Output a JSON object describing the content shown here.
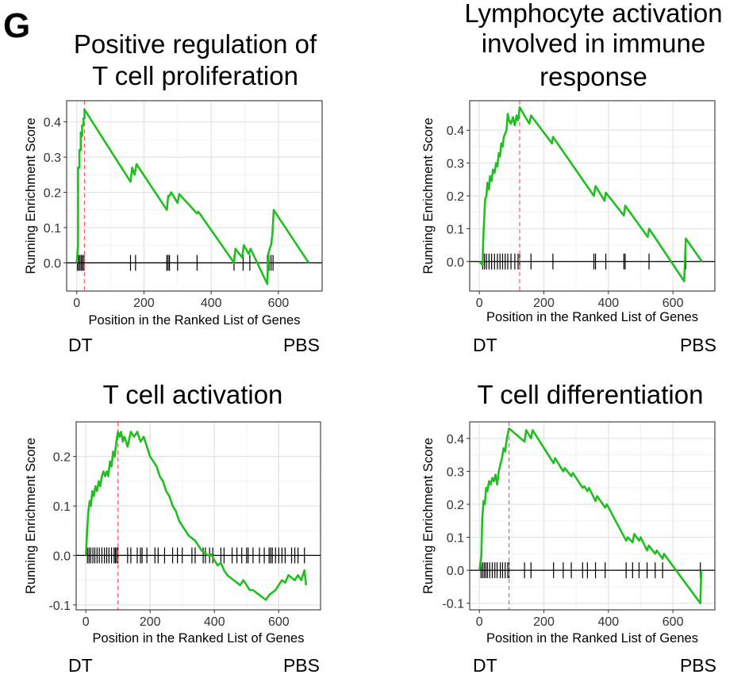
{
  "panel_label": "G",
  "chart_data": [
    {
      "type": "line",
      "title": [
        "Positive regulation of",
        "T cell proliferation"
      ],
      "xlabel": "Position in the Ranked List of Genes",
      "ylabel": "Running Enrichment Score",
      "left_label": "DT",
      "right_label": "PBS",
      "xlim": [
        -30,
        730
      ],
      "ylim": [
        -0.08,
        0.46
      ],
      "xticks": [
        0,
        200,
        400,
        600
      ],
      "yticks": [
        0.0,
        0.1,
        0.2,
        0.3,
        0.4
      ],
      "ytick_labels": [
        "0.0",
        "0.1",
        "0.2",
        "0.3",
        "0.4"
      ],
      "peak_x": 23,
      "line_color": "#1fbf1f",
      "peak_color": "#ff5555",
      "grid": true,
      "series": [
        {
          "name": "Running Enrichment Score",
          "x": [
            0,
            4,
            4,
            8,
            8,
            12,
            12,
            16,
            16,
            20,
            20,
            23,
            23,
            160,
            165,
            172,
            178,
            268,
            272,
            276,
            281,
            300,
            305,
            358,
            362,
            468,
            472,
            492,
            497,
            512,
            517,
            567,
            570,
            574,
            578,
            582,
            586,
            690
          ],
          "y": [
            0.0,
            0.05,
            0.27,
            0.27,
            0.32,
            0.32,
            0.37,
            0.36,
            0.39,
            0.39,
            0.41,
            0.41,
            0.435,
            0.23,
            0.27,
            0.25,
            0.28,
            0.15,
            0.19,
            0.19,
            0.2,
            0.17,
            0.195,
            0.14,
            0.145,
            0.0,
            0.04,
            0.015,
            0.05,
            0.025,
            0.04,
            -0.06,
            0.025,
            0.04,
            0.05,
            0.08,
            0.15,
            0.0
          ]
        }
      ],
      "hit_positions": [
        2,
        6,
        10,
        14,
        18,
        22,
        160,
        175,
        268,
        272,
        276,
        300,
        358,
        468,
        495,
        515,
        567,
        572,
        578,
        584
      ]
    },
    {
      "type": "line",
      "title": [
        "Lymphocyte activation",
        "involved in immune",
        "response"
      ],
      "xlabel": "Position in the Ranked List of Genes",
      "ylabel": "Running Enrichment Score",
      "left_label": "DT",
      "right_label": "PBS",
      "xlim": [
        -30,
        730
      ],
      "ylim": [
        -0.09,
        0.49
      ],
      "xticks": [
        0,
        200,
        400,
        600
      ],
      "yticks": [
        0.0,
        0.1,
        0.2,
        0.3,
        0.4
      ],
      "ytick_labels": [
        "0.0",
        "0.1",
        "0.2",
        "0.3",
        "0.4"
      ],
      "peak_x": 125,
      "line_color": "#1fbf1f",
      "peak_color": "#ff5555",
      "grid": true,
      "series": [
        {
          "name": "Running Enrichment Score",
          "x": [
            0,
            10,
            12,
            16,
            18,
            22,
            25,
            30,
            33,
            38,
            42,
            47,
            52,
            56,
            60,
            64,
            68,
            72,
            76,
            80,
            84,
            88,
            92,
            98,
            104,
            110,
            115,
            120,
            125,
            155,
            160,
            225,
            228,
            355,
            360,
            388,
            392,
            448,
            452,
            522,
            526,
            635,
            640,
            690
          ],
          "y": [
            0.0,
            -0.01,
            0.07,
            0.15,
            0.19,
            0.2,
            0.24,
            0.22,
            0.26,
            0.245,
            0.28,
            0.27,
            0.3,
            0.29,
            0.33,
            0.32,
            0.36,
            0.35,
            0.38,
            0.39,
            0.4,
            0.45,
            0.43,
            0.42,
            0.44,
            0.415,
            0.445,
            0.43,
            0.47,
            0.42,
            0.445,
            0.36,
            0.38,
            0.2,
            0.23,
            0.185,
            0.21,
            0.14,
            0.17,
            0.075,
            0.1,
            -0.06,
            0.07,
            0.0
          ]
        }
      ],
      "hit_positions": [
        10,
        16,
        22,
        30,
        38,
        47,
        56,
        64,
        72,
        80,
        88,
        98,
        110,
        120,
        125,
        160,
        228,
        355,
        360,
        392,
        448,
        452,
        526,
        640
      ]
    },
    {
      "type": "line",
      "title": [
        "T cell activation"
      ],
      "xlabel": "Position in the Ranked List of Genes",
      "ylabel": "Running Enrichment Score",
      "left_label": "DT",
      "right_label": "PBS",
      "xlim": [
        -30,
        730
      ],
      "ylim": [
        -0.11,
        0.27
      ],
      "xticks": [
        0,
        200,
        400,
        600
      ],
      "yticks": [
        -0.1,
        0.0,
        0.1,
        0.2
      ],
      "ytick_labels": [
        "-0.1",
        "0.0",
        "0.1",
        "0.2"
      ],
      "peak_x": 100,
      "line_color": "#1fbf1f",
      "peak_color": "#ff5555",
      "grid": true,
      "series": [
        {
          "name": "Running Enrichment Score",
          "x": [
            0,
            5,
            8,
            12,
            16,
            20,
            25,
            30,
            35,
            40,
            45,
            50,
            55,
            60,
            65,
            70,
            75,
            80,
            85,
            90,
            95,
            100,
            105,
            110,
            115,
            120,
            130,
            140,
            150,
            160,
            170,
            180,
            190,
            200,
            210,
            220,
            230,
            240,
            250,
            260,
            270,
            280,
            290,
            300,
            310,
            320,
            330,
            340,
            350,
            360,
            370,
            380,
            390,
            400,
            410,
            420,
            430,
            440,
            450,
            460,
            470,
            480,
            490,
            500,
            510,
            520,
            530,
            540,
            550,
            560,
            570,
            580,
            590,
            600,
            610,
            620,
            630,
            640,
            650,
            660,
            670,
            680,
            685
          ],
          "y": [
            0.0,
            0.06,
            0.09,
            0.11,
            0.1,
            0.13,
            0.12,
            0.14,
            0.13,
            0.15,
            0.14,
            0.16,
            0.17,
            0.16,
            0.17,
            0.16,
            0.19,
            0.18,
            0.21,
            0.2,
            0.23,
            0.25,
            0.24,
            0.25,
            0.23,
            0.24,
            0.22,
            0.25,
            0.24,
            0.25,
            0.23,
            0.24,
            0.22,
            0.2,
            0.19,
            0.18,
            0.16,
            0.15,
            0.13,
            0.12,
            0.1,
            0.09,
            0.07,
            0.06,
            0.05,
            0.04,
            0.035,
            0.03,
            0.02,
            0.01,
            0.005,
            0.0,
            0.002,
            -0.01,
            -0.02,
            -0.015,
            -0.03,
            -0.04,
            -0.045,
            -0.05,
            -0.055,
            -0.06,
            -0.05,
            -0.06,
            -0.07,
            -0.07,
            -0.075,
            -0.08,
            -0.085,
            -0.09,
            -0.08,
            -0.075,
            -0.07,
            -0.06,
            -0.05,
            -0.055,
            -0.04,
            -0.045,
            -0.05,
            -0.04,
            -0.05,
            -0.03,
            -0.06
          ]
        }
      ],
      "hit_positions": [
        5,
        10,
        15,
        22,
        28,
        35,
        42,
        50,
        58,
        65,
        72,
        80,
        88,
        92,
        96,
        100,
        130,
        140,
        160,
        170,
        175,
        190,
        215,
        225,
        245,
        270,
        285,
        300,
        330,
        340,
        365,
        372,
        385,
        395,
        420,
        430,
        455,
        470,
        485,
        500,
        505,
        520,
        540,
        555,
        570,
        575,
        580,
        590,
        600,
        610,
        620,
        640,
        650,
        660,
        680
      ]
    },
    {
      "type": "line",
      "title": [
        "T cell differentiation"
      ],
      "xlabel": "Position in the Ranked List of Genes",
      "ylabel": "Running Enrichment Score",
      "left_label": "DT",
      "right_label": "PBS",
      "xlim": [
        -30,
        730
      ],
      "ylim": [
        -0.12,
        0.45
      ],
      "xticks": [
        0,
        200,
        400,
        600
      ],
      "yticks": [
        -0.1,
        0.0,
        0.1,
        0.2,
        0.3,
        0.4
      ],
      "ytick_labels": [
        "-0.1",
        "0.0",
        "0.1",
        "0.2",
        "0.3",
        "0.4"
      ],
      "peak_x": 92,
      "line_color": "#1fbf1f",
      "peak_color": "#ff5555",
      "grid": true,
      "series": [
        {
          "name": "Running Enrichment Score",
          "x": [
            0,
            6,
            9,
            13,
            17,
            21,
            25,
            30,
            35,
            40,
            45,
            50,
            55,
            60,
            65,
            70,
            75,
            80,
            85,
            92,
            140,
            145,
            160,
            165,
            230,
            235,
            260,
            265,
            285,
            290,
            320,
            325,
            335,
            340,
            360,
            365,
            390,
            395,
            455,
            460,
            475,
            480,
            495,
            500,
            520,
            525,
            545,
            550,
            568,
            572,
            685,
            688
          ],
          "y": [
            0.0,
            0.04,
            0.16,
            0.21,
            0.2,
            0.25,
            0.24,
            0.27,
            0.26,
            0.28,
            0.27,
            0.29,
            0.26,
            0.3,
            0.32,
            0.34,
            0.37,
            0.36,
            0.4,
            0.43,
            0.39,
            0.425,
            0.4,
            0.425,
            0.325,
            0.34,
            0.3,
            0.31,
            0.285,
            0.295,
            0.25,
            0.255,
            0.24,
            0.25,
            0.21,
            0.225,
            0.19,
            0.2,
            0.09,
            0.1,
            0.085,
            0.11,
            0.09,
            0.1,
            0.06,
            0.075,
            0.05,
            0.06,
            0.035,
            0.05,
            -0.1,
            0.0
          ]
        }
      ],
      "hit_positions": [
        5,
        10,
        15,
        20,
        25,
        32,
        40,
        48,
        55,
        65,
        72,
        80,
        88,
        92,
        140,
        160,
        230,
        260,
        285,
        320,
        335,
        360,
        390,
        455,
        475,
        495,
        520,
        545,
        568,
        685
      ]
    }
  ]
}
